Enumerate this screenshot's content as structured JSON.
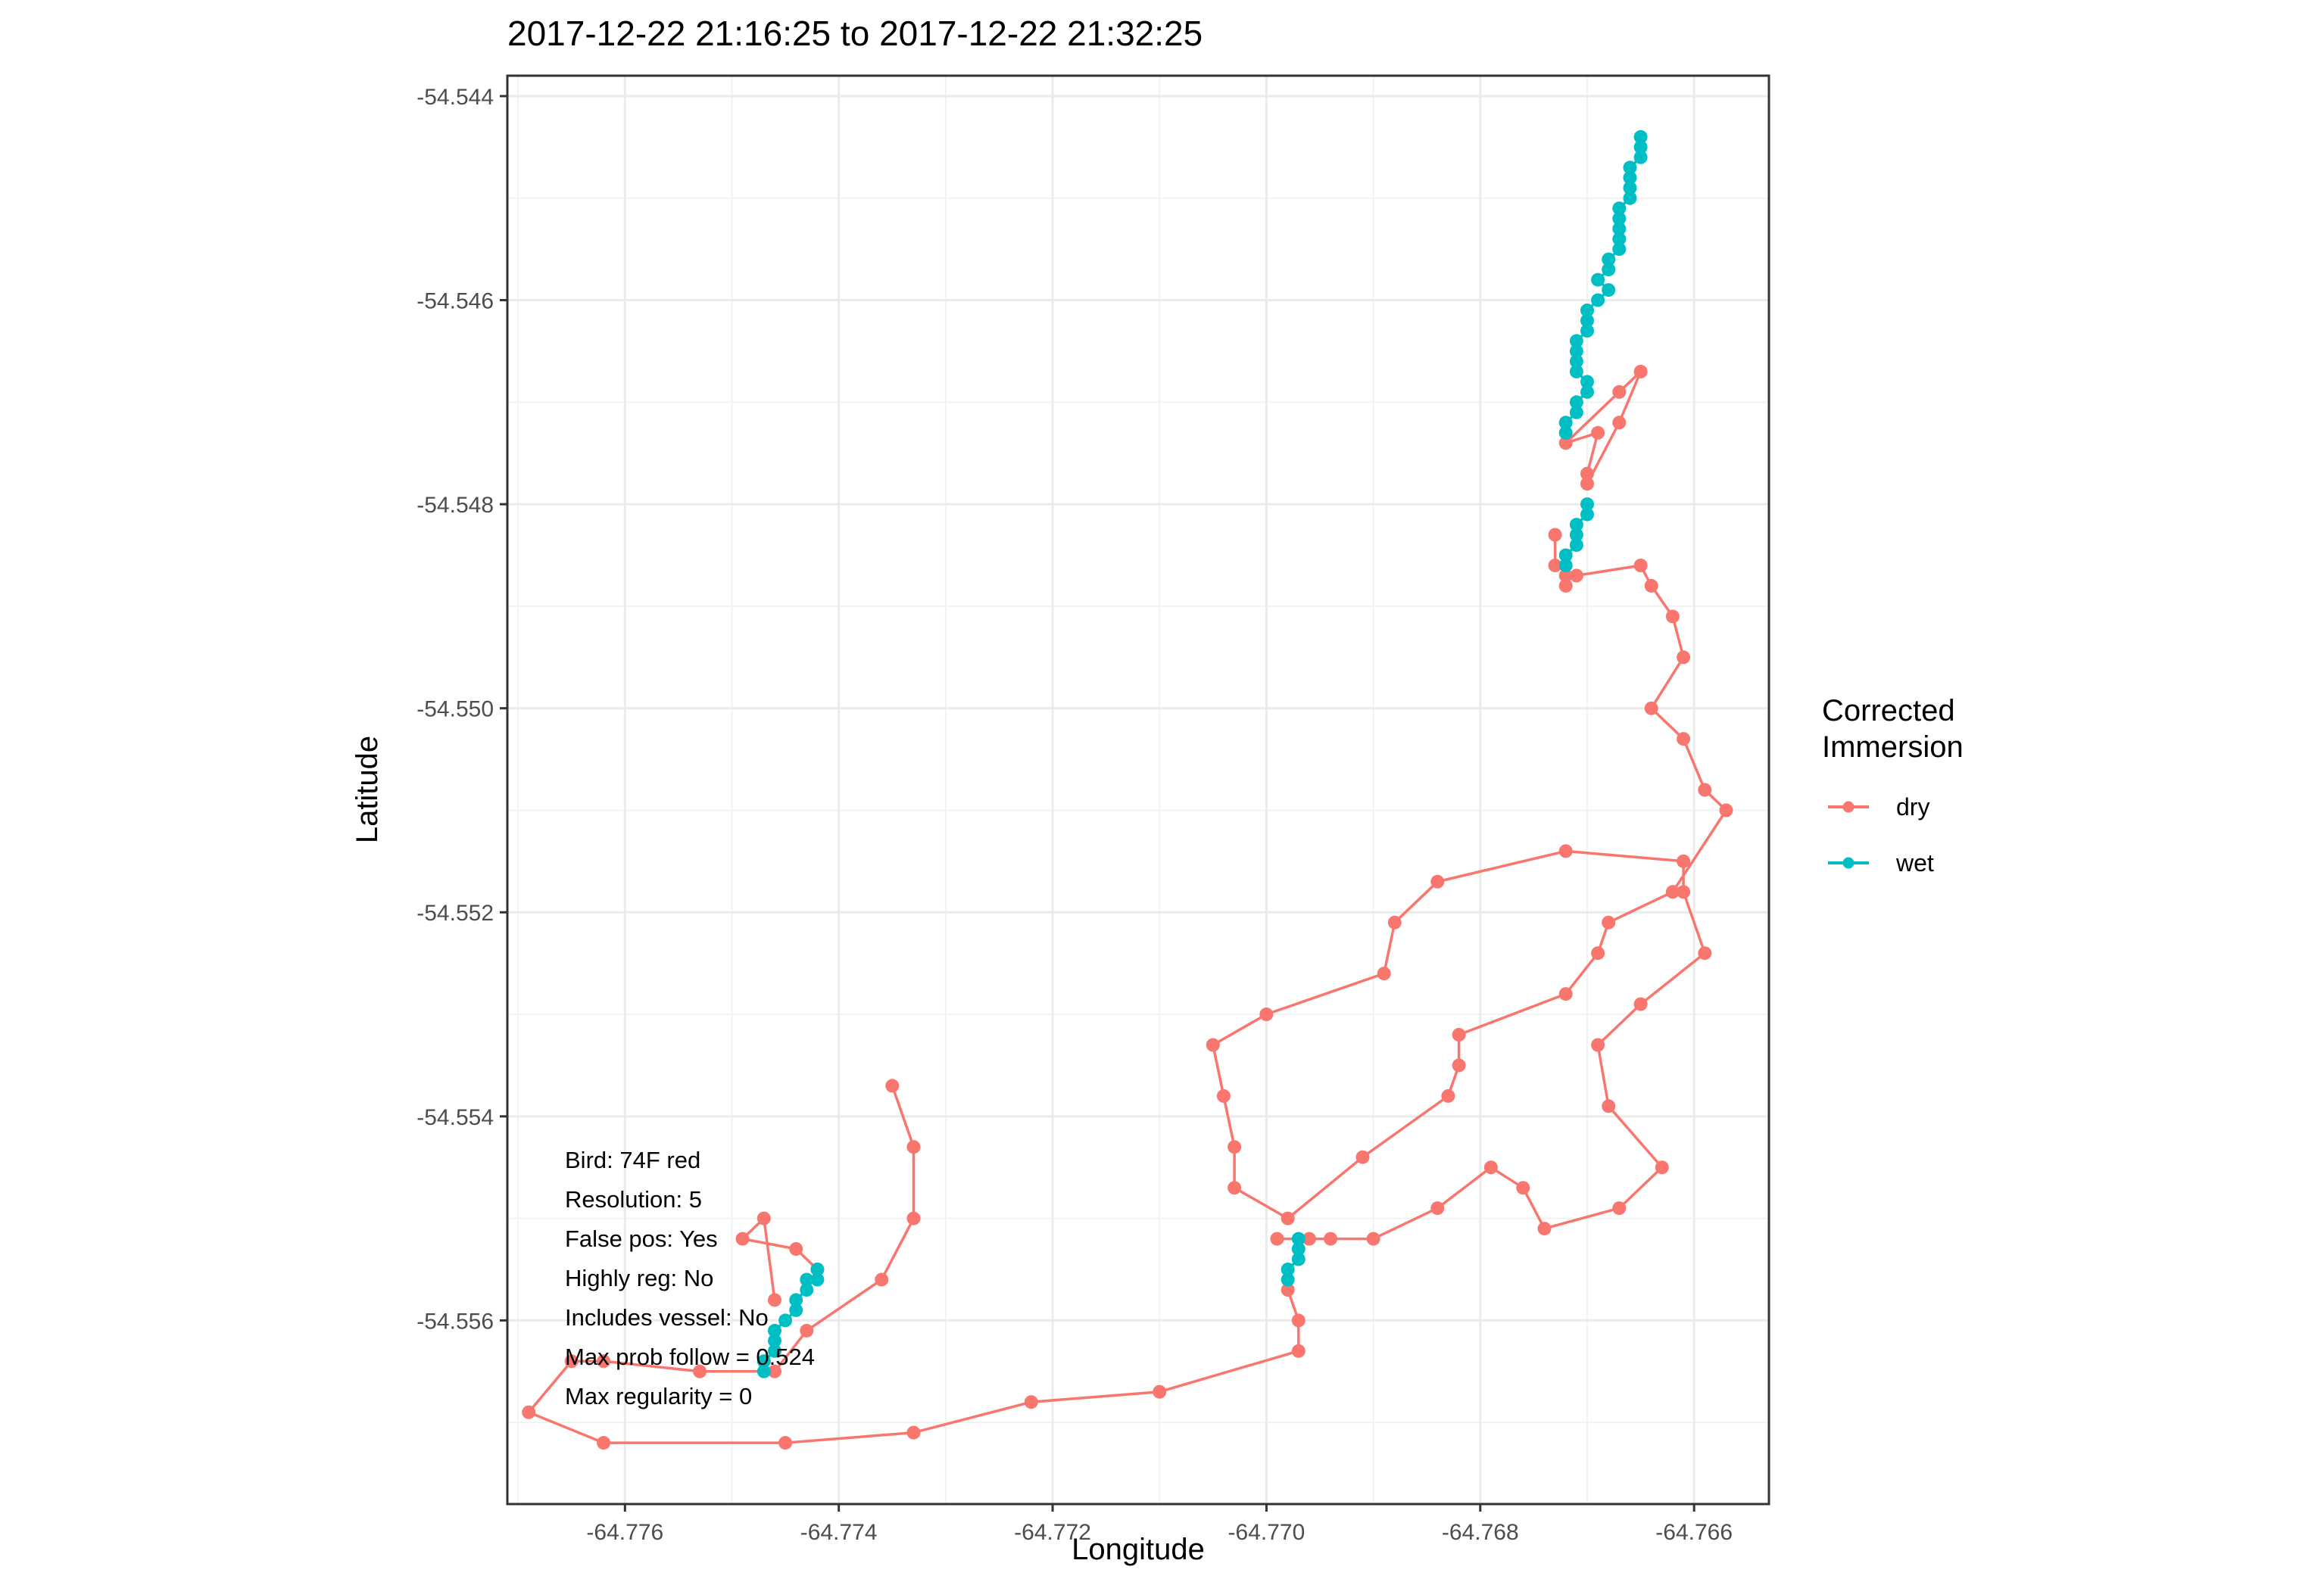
{
  "chart_data": {
    "type": "line",
    "title": "2017-12-22 21:16:25 to 2017-12-22 21:32:25",
    "xlabel": "Longitude",
    "ylabel": "Latitude",
    "xlim": [
      -64.7771,
      -64.7653
    ],
    "ylim": [
      -54.5578,
      -54.5438
    ],
    "x_ticks": [
      -64.776,
      -64.774,
      -64.772,
      -64.77,
      -64.768,
      -64.766
    ],
    "x_tick_labels": [
      "-64.776",
      "-64.774",
      "-64.772",
      "-64.770",
      "-64.768",
      "-64.766"
    ],
    "y_ticks": [
      -54.544,
      -54.546,
      -54.548,
      -54.55,
      -54.552,
      -54.554,
      -54.556
    ],
    "y_tick_labels": [
      "-54.544",
      "-54.546",
      "-54.548",
      "-54.550",
      "-54.552",
      "-54.554",
      "-54.556"
    ],
    "grid": true,
    "legend": {
      "title_lines": [
        "Corrected",
        "Immersion"
      ],
      "placement": "right",
      "entries": [
        {
          "label": "dry",
          "color": "#F8766D"
        },
        {
          "label": "wet",
          "color": "#00BFC4"
        }
      ]
    },
    "annotations": [
      "Bird: 74F red",
      "Resolution: 5",
      "False pos: Yes",
      "Highly reg: No",
      "Includes vessel: No",
      "Max prob follow = 0.524",
      "Max regularity = 0"
    ],
    "series": [
      {
        "name": "dry",
        "color": "#F8766D",
        "segments": [
          [
            [
              -64.7735,
              -54.5537
            ],
            [
              -64.7733,
              -54.5543
            ],
            [
              -64.7733,
              -54.555
            ],
            [
              -64.7736,
              -54.5556
            ],
            [
              -64.7743,
              -54.5561
            ],
            [
              -64.7746,
              -54.5565
            ],
            [
              -64.7753,
              -54.5565
            ],
            [
              -64.7762,
              -54.5564
            ],
            [
              -64.7765,
              -54.5564
            ],
            [
              -64.7769,
              -54.5569
            ],
            [
              -64.7762,
              -54.5572
            ],
            [
              -64.7745,
              -54.5572
            ],
            [
              -64.7733,
              -54.5571
            ],
            [
              -64.7722,
              -54.5568
            ],
            [
              -64.771,
              -54.5567
            ],
            [
              -64.7697,
              -54.5563
            ],
            [
              -64.7697,
              -54.556
            ],
            [
              -64.7698,
              -54.5557
            ]
          ],
          [
            [
              -64.7746,
              -54.5558
            ],
            [
              -64.7747,
              -54.555
            ],
            [
              -64.7749,
              -54.5552
            ],
            [
              -64.7744,
              -54.5553
            ],
            [
              -64.7742,
              -54.5555
            ]
          ],
          [
            [
              -64.7696,
              -54.5552
            ],
            [
              -64.7699,
              -54.5552
            ],
            [
              -64.7694,
              -54.5552
            ],
            [
              -64.769,
              -54.5552
            ],
            [
              -64.7684,
              -54.5549
            ],
            [
              -64.7679,
              -54.5545
            ],
            [
              -64.7676,
              -54.5547
            ],
            [
              -64.7674,
              -54.5551
            ],
            [
              -64.7667,
              -54.5549
            ],
            [
              -64.7663,
              -54.5545
            ],
            [
              -64.7668,
              -54.5539
            ],
            [
              -64.7669,
              -54.5533
            ],
            [
              -64.7665,
              -54.5529
            ],
            [
              -64.7659,
              -54.5524
            ],
            [
              -64.7661,
              -54.5518
            ],
            [
              -64.7661,
              -54.5515
            ],
            [
              -64.7672,
              -54.5514
            ],
            [
              -64.7684,
              -54.5517
            ],
            [
              -64.7688,
              -54.5521
            ],
            [
              -64.7689,
              -54.5526
            ],
            [
              -64.77,
              -54.553
            ],
            [
              -64.7705,
              -54.5533
            ],
            [
              -64.7704,
              -54.5538
            ],
            [
              -64.7703,
              -54.5543
            ],
            [
              -64.7703,
              -54.5547
            ],
            [
              -64.7698,
              -54.555
            ],
            [
              -64.7691,
              -54.5544
            ],
            [
              -64.7683,
              -54.5538
            ],
            [
              -64.7682,
              -54.5535
            ],
            [
              -64.7682,
              -54.5532
            ],
            [
              -64.7672,
              -54.5528
            ],
            [
              -64.7669,
              -54.5524
            ],
            [
              -64.7668,
              -54.5521
            ],
            [
              -64.7662,
              -54.5518
            ],
            [
              -64.7657,
              -54.551
            ],
            [
              -64.7659,
              -54.5508
            ],
            [
              -64.7661,
              -54.5503
            ],
            [
              -64.7664,
              -54.55
            ],
            [
              -64.7661,
              -54.5495
            ],
            [
              -64.7662,
              -54.5491
            ],
            [
              -64.7664,
              -54.5488
            ],
            [
              -64.7665,
              -54.5486
            ],
            [
              -64.7671,
              -54.5487
            ],
            [
              -64.7673,
              -54.5486
            ],
            [
              -64.7673,
              -54.5483
            ]
          ],
          [
            [
              -64.7672,
              -54.5488
            ],
            [
              -64.7672,
              -54.5487
            ]
          ],
          [
            [
              -64.767,
              -54.5477
            ],
            [
              -64.7669,
              -54.5473
            ],
            [
              -64.7672,
              -54.5474
            ],
            [
              -64.7667,
              -54.5469
            ],
            [
              -64.7665,
              -54.5467
            ],
            [
              -64.7667,
              -54.5472
            ],
            [
              -64.767,
              -54.5478
            ]
          ]
        ]
      },
      {
        "name": "wet",
        "color": "#00BFC4",
        "segments": [
          [
            [
              -64.7665,
              -54.5444
            ],
            [
              -64.7665,
              -54.5445
            ],
            [
              -64.7665,
              -54.5446
            ],
            [
              -64.7666,
              -54.5447
            ],
            [
              -64.7666,
              -54.5448
            ],
            [
              -64.7666,
              -54.5449
            ],
            [
              -64.7666,
              -54.545
            ],
            [
              -64.7667,
              -54.5451
            ],
            [
              -64.7667,
              -54.5452
            ],
            [
              -64.7667,
              -54.5453
            ],
            [
              -64.7667,
              -54.5454
            ],
            [
              -64.7667,
              -54.5455
            ],
            [
              -64.7668,
              -54.5456
            ],
            [
              -64.7668,
              -54.5457
            ],
            [
              -64.7669,
              -54.5458
            ],
            [
              -64.7668,
              -54.5459
            ],
            [
              -64.7669,
              -54.546
            ],
            [
              -64.767,
              -54.5461
            ],
            [
              -64.767,
              -54.5462
            ],
            [
              -64.767,
              -54.5463
            ],
            [
              -64.7671,
              -54.5464
            ],
            [
              -64.7671,
              -54.5465
            ],
            [
              -64.7671,
              -54.5466
            ],
            [
              -64.7671,
              -54.5467
            ],
            [
              -64.767,
              -54.5468
            ],
            [
              -64.767,
              -54.5469
            ],
            [
              -64.7671,
              -54.547
            ],
            [
              -64.7671,
              -54.5471
            ],
            [
              -64.7672,
              -54.5472
            ],
            [
              -64.7672,
              -54.5473
            ]
          ],
          [
            [
              -64.767,
              -54.548
            ],
            [
              -64.767,
              -54.5481
            ],
            [
              -64.7671,
              -54.5482
            ],
            [
              -64.7671,
              -54.5483
            ],
            [
              -64.7671,
              -54.5484
            ],
            [
              -64.7672,
              -54.5485
            ],
            [
              -64.7672,
              -54.5486
            ]
          ],
          [
            [
              -64.7697,
              -54.5552
            ],
            [
              -64.7697,
              -54.5553
            ],
            [
              -64.7697,
              -54.5554
            ],
            [
              -64.7698,
              -54.5555
            ],
            [
              -64.7698,
              -54.5556
            ]
          ],
          [
            [
              -64.7742,
              -54.5555
            ],
            [
              -64.7742,
              -54.5556
            ],
            [
              -64.7743,
              -54.5556
            ],
            [
              -64.7743,
              -54.5557
            ],
            [
              -64.7744,
              -54.5558
            ],
            [
              -64.7744,
              -54.5559
            ],
            [
              -64.7745,
              -54.556
            ],
            [
              -64.7746,
              -54.5561
            ],
            [
              -64.7746,
              -54.5562
            ],
            [
              -64.7746,
              -54.5563
            ],
            [
              -64.7747,
              -54.5564
            ],
            [
              -64.7747,
              -54.5565
            ]
          ]
        ]
      }
    ]
  }
}
